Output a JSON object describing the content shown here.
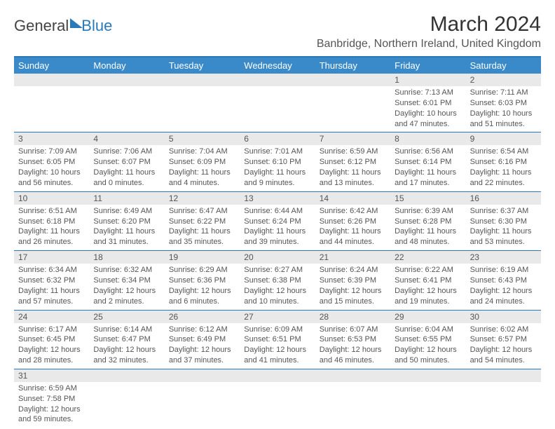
{
  "logo": {
    "part1": "General",
    "part2": "Blue"
  },
  "title": "March 2024",
  "location": "Banbridge, Northern Ireland, United Kingdom",
  "dayNames": [
    "Sunday",
    "Monday",
    "Tuesday",
    "Wednesday",
    "Thursday",
    "Friday",
    "Saturday"
  ],
  "colors": {
    "header_bg": "#3a8ac9",
    "accent": "#2a7ab9",
    "daynum_bg": "#e9e9e9",
    "text": "#555555"
  },
  "weeks": [
    {
      "nums": [
        "",
        "",
        "",
        "",
        "",
        "1",
        "2"
      ],
      "cells": [
        {
          "sunrise": "",
          "sunset": "",
          "daylight": ""
        },
        {
          "sunrise": "",
          "sunset": "",
          "daylight": ""
        },
        {
          "sunrise": "",
          "sunset": "",
          "daylight": ""
        },
        {
          "sunrise": "",
          "sunset": "",
          "daylight": ""
        },
        {
          "sunrise": "",
          "sunset": "",
          "daylight": ""
        },
        {
          "sunrise": "Sunrise: 7:13 AM",
          "sunset": "Sunset: 6:01 PM",
          "daylight": "Daylight: 10 hours and 47 minutes."
        },
        {
          "sunrise": "Sunrise: 7:11 AM",
          "sunset": "Sunset: 6:03 PM",
          "daylight": "Daylight: 10 hours and 51 minutes."
        }
      ]
    },
    {
      "nums": [
        "3",
        "4",
        "5",
        "6",
        "7",
        "8",
        "9"
      ],
      "cells": [
        {
          "sunrise": "Sunrise: 7:09 AM",
          "sunset": "Sunset: 6:05 PM",
          "daylight": "Daylight: 10 hours and 56 minutes."
        },
        {
          "sunrise": "Sunrise: 7:06 AM",
          "sunset": "Sunset: 6:07 PM",
          "daylight": "Daylight: 11 hours and 0 minutes."
        },
        {
          "sunrise": "Sunrise: 7:04 AM",
          "sunset": "Sunset: 6:09 PM",
          "daylight": "Daylight: 11 hours and 4 minutes."
        },
        {
          "sunrise": "Sunrise: 7:01 AM",
          "sunset": "Sunset: 6:10 PM",
          "daylight": "Daylight: 11 hours and 9 minutes."
        },
        {
          "sunrise": "Sunrise: 6:59 AM",
          "sunset": "Sunset: 6:12 PM",
          "daylight": "Daylight: 11 hours and 13 minutes."
        },
        {
          "sunrise": "Sunrise: 6:56 AM",
          "sunset": "Sunset: 6:14 PM",
          "daylight": "Daylight: 11 hours and 17 minutes."
        },
        {
          "sunrise": "Sunrise: 6:54 AM",
          "sunset": "Sunset: 6:16 PM",
          "daylight": "Daylight: 11 hours and 22 minutes."
        }
      ]
    },
    {
      "nums": [
        "10",
        "11",
        "12",
        "13",
        "14",
        "15",
        "16"
      ],
      "cells": [
        {
          "sunrise": "Sunrise: 6:51 AM",
          "sunset": "Sunset: 6:18 PM",
          "daylight": "Daylight: 11 hours and 26 minutes."
        },
        {
          "sunrise": "Sunrise: 6:49 AM",
          "sunset": "Sunset: 6:20 PM",
          "daylight": "Daylight: 11 hours and 31 minutes."
        },
        {
          "sunrise": "Sunrise: 6:47 AM",
          "sunset": "Sunset: 6:22 PM",
          "daylight": "Daylight: 11 hours and 35 minutes."
        },
        {
          "sunrise": "Sunrise: 6:44 AM",
          "sunset": "Sunset: 6:24 PM",
          "daylight": "Daylight: 11 hours and 39 minutes."
        },
        {
          "sunrise": "Sunrise: 6:42 AM",
          "sunset": "Sunset: 6:26 PM",
          "daylight": "Daylight: 11 hours and 44 minutes."
        },
        {
          "sunrise": "Sunrise: 6:39 AM",
          "sunset": "Sunset: 6:28 PM",
          "daylight": "Daylight: 11 hours and 48 minutes."
        },
        {
          "sunrise": "Sunrise: 6:37 AM",
          "sunset": "Sunset: 6:30 PM",
          "daylight": "Daylight: 11 hours and 53 minutes."
        }
      ]
    },
    {
      "nums": [
        "17",
        "18",
        "19",
        "20",
        "21",
        "22",
        "23"
      ],
      "cells": [
        {
          "sunrise": "Sunrise: 6:34 AM",
          "sunset": "Sunset: 6:32 PM",
          "daylight": "Daylight: 11 hours and 57 minutes."
        },
        {
          "sunrise": "Sunrise: 6:32 AM",
          "sunset": "Sunset: 6:34 PM",
          "daylight": "Daylight: 12 hours and 2 minutes."
        },
        {
          "sunrise": "Sunrise: 6:29 AM",
          "sunset": "Sunset: 6:36 PM",
          "daylight": "Daylight: 12 hours and 6 minutes."
        },
        {
          "sunrise": "Sunrise: 6:27 AM",
          "sunset": "Sunset: 6:38 PM",
          "daylight": "Daylight: 12 hours and 10 minutes."
        },
        {
          "sunrise": "Sunrise: 6:24 AM",
          "sunset": "Sunset: 6:39 PM",
          "daylight": "Daylight: 12 hours and 15 minutes."
        },
        {
          "sunrise": "Sunrise: 6:22 AM",
          "sunset": "Sunset: 6:41 PM",
          "daylight": "Daylight: 12 hours and 19 minutes."
        },
        {
          "sunrise": "Sunrise: 6:19 AM",
          "sunset": "Sunset: 6:43 PM",
          "daylight": "Daylight: 12 hours and 24 minutes."
        }
      ]
    },
    {
      "nums": [
        "24",
        "25",
        "26",
        "27",
        "28",
        "29",
        "30"
      ],
      "cells": [
        {
          "sunrise": "Sunrise: 6:17 AM",
          "sunset": "Sunset: 6:45 PM",
          "daylight": "Daylight: 12 hours and 28 minutes."
        },
        {
          "sunrise": "Sunrise: 6:14 AM",
          "sunset": "Sunset: 6:47 PM",
          "daylight": "Daylight: 12 hours and 32 minutes."
        },
        {
          "sunrise": "Sunrise: 6:12 AM",
          "sunset": "Sunset: 6:49 PM",
          "daylight": "Daylight: 12 hours and 37 minutes."
        },
        {
          "sunrise": "Sunrise: 6:09 AM",
          "sunset": "Sunset: 6:51 PM",
          "daylight": "Daylight: 12 hours and 41 minutes."
        },
        {
          "sunrise": "Sunrise: 6:07 AM",
          "sunset": "Sunset: 6:53 PM",
          "daylight": "Daylight: 12 hours and 46 minutes."
        },
        {
          "sunrise": "Sunrise: 6:04 AM",
          "sunset": "Sunset: 6:55 PM",
          "daylight": "Daylight: 12 hours and 50 minutes."
        },
        {
          "sunrise": "Sunrise: 6:02 AM",
          "sunset": "Sunset: 6:57 PM",
          "daylight": "Daylight: 12 hours and 54 minutes."
        }
      ]
    },
    {
      "nums": [
        "31",
        "",
        "",
        "",
        "",
        "",
        ""
      ],
      "cells": [
        {
          "sunrise": "Sunrise: 6:59 AM",
          "sunset": "Sunset: 7:58 PM",
          "daylight": "Daylight: 12 hours and 59 minutes."
        },
        {
          "sunrise": "",
          "sunset": "",
          "daylight": ""
        },
        {
          "sunrise": "",
          "sunset": "",
          "daylight": ""
        },
        {
          "sunrise": "",
          "sunset": "",
          "daylight": ""
        },
        {
          "sunrise": "",
          "sunset": "",
          "daylight": ""
        },
        {
          "sunrise": "",
          "sunset": "",
          "daylight": ""
        },
        {
          "sunrise": "",
          "sunset": "",
          "daylight": ""
        }
      ]
    }
  ]
}
